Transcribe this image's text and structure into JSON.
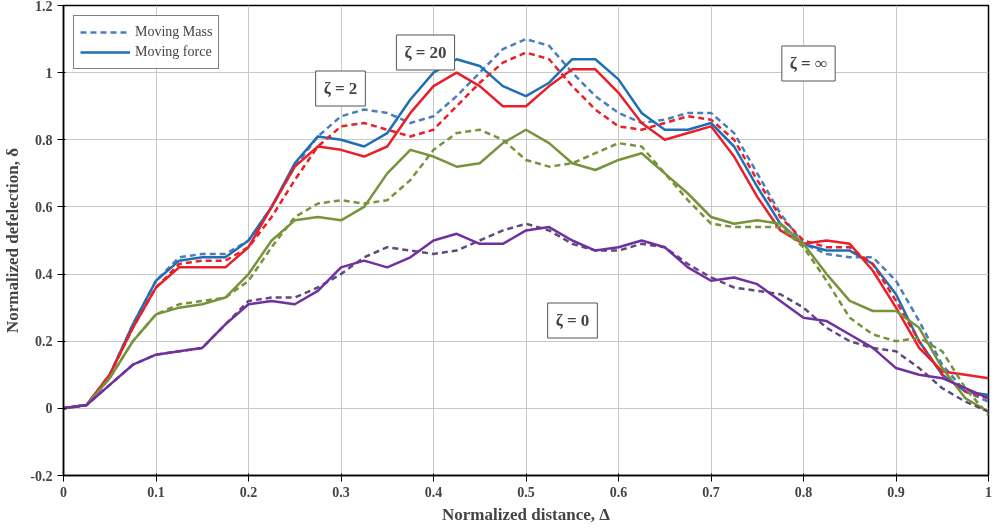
{
  "chart_data": {
    "type": "line",
    "xlabel": "Normalized distance, Δ",
    "ylabel": "Normalized defelection, δ",
    "x": [
      0,
      0.025,
      0.05,
      0.075,
      0.1,
      0.125,
      0.15,
      0.175,
      0.2,
      0.225,
      0.25,
      0.275,
      0.3,
      0.325,
      0.35,
      0.375,
      0.4,
      0.425,
      0.45,
      0.475,
      0.5,
      0.525,
      0.55,
      0.575,
      0.6,
      0.625,
      0.65,
      0.675,
      0.7,
      0.725,
      0.75,
      0.775,
      0.8,
      0.825,
      0.85,
      0.875,
      0.9,
      0.925,
      0.95,
      0.975,
      1.0
    ],
    "series": [
      {
        "name": "Moving Mass",
        "color": "#4a7ebb",
        "line_style": "dashed",
        "values": [
          0,
          0.01,
          0.1,
          0.25,
          0.38,
          0.45,
          0.46,
          0.46,
          0.5,
          0.6,
          0.72,
          0.81,
          0.87,
          0.89,
          0.88,
          0.85,
          0.87,
          0.93,
          1.0,
          1.07,
          1.1,
          1.08,
          1.0,
          0.93,
          0.88,
          0.85,
          0.86,
          0.88,
          0.88,
          0.82,
          0.7,
          0.58,
          0.49,
          0.46,
          0.45,
          0.45,
          0.38,
          0.26,
          0.13,
          0.05,
          0.02
        ]
      },
      {
        "name": "Moving force",
        "color": "#1f6fb5",
        "line_style": "solid",
        "values": [
          0,
          0.01,
          0.1,
          0.25,
          0.38,
          0.44,
          0.45,
          0.45,
          0.5,
          0.6,
          0.73,
          0.81,
          0.8,
          0.78,
          0.82,
          0.92,
          1.0,
          1.04,
          1.02,
          0.96,
          0.93,
          0.97,
          1.04,
          1.04,
          0.98,
          0.88,
          0.83,
          0.83,
          0.85,
          0.78,
          0.66,
          0.55,
          0.49,
          0.47,
          0.47,
          0.43,
          0.34,
          0.2,
          0.1,
          0.05,
          0.04
        ]
      },
      {
        "color": "#e8202a",
        "line_style": "dashed",
        "values": [
          0,
          0.01,
          0.1,
          0.24,
          0.36,
          0.43,
          0.44,
          0.44,
          0.48,
          0.57,
          0.68,
          0.78,
          0.84,
          0.85,
          0.83,
          0.81,
          0.83,
          0.9,
          0.97,
          1.03,
          1.06,
          1.04,
          0.96,
          0.89,
          0.84,
          0.83,
          0.85,
          0.87,
          0.86,
          0.8,
          0.68,
          0.57,
          0.5,
          0.48,
          0.48,
          0.43,
          0.32,
          0.2,
          0.1,
          0.05,
          0.03
        ]
      },
      {
        "color": "#e8202a",
        "line_style": "solid",
        "values": [
          0,
          0.01,
          0.1,
          0.24,
          0.36,
          0.42,
          0.42,
          0.42,
          0.48,
          0.6,
          0.72,
          0.78,
          0.77,
          0.75,
          0.78,
          0.88,
          0.96,
          1.0,
          0.96,
          0.9,
          0.9,
          0.96,
          1.01,
          1.01,
          0.94,
          0.85,
          0.8,
          0.82,
          0.84,
          0.75,
          0.63,
          0.53,
          0.49,
          0.5,
          0.49,
          0.41,
          0.3,
          0.18,
          0.11,
          0.1,
          0.09
        ]
      },
      {
        "color": "#77933c",
        "line_style": "dashed",
        "values": [
          0,
          0.01,
          0.09,
          0.2,
          0.28,
          0.31,
          0.32,
          0.33,
          0.38,
          0.48,
          0.57,
          0.61,
          0.62,
          0.61,
          0.62,
          0.68,
          0.77,
          0.82,
          0.83,
          0.8,
          0.74,
          0.72,
          0.73,
          0.76,
          0.79,
          0.78,
          0.7,
          0.62,
          0.55,
          0.54,
          0.54,
          0.54,
          0.48,
          0.38,
          0.27,
          0.22,
          0.2,
          0.21,
          0.17,
          0.06,
          -0.02
        ]
      },
      {
        "color": "#77933c",
        "line_style": "solid",
        "values": [
          0,
          0.01,
          0.09,
          0.2,
          0.28,
          0.3,
          0.31,
          0.33,
          0.4,
          0.5,
          0.56,
          0.57,
          0.56,
          0.6,
          0.7,
          0.77,
          0.75,
          0.72,
          0.73,
          0.79,
          0.83,
          0.79,
          0.73,
          0.71,
          0.74,
          0.76,
          0.7,
          0.64,
          0.57,
          0.55,
          0.56,
          0.55,
          0.49,
          0.4,
          0.32,
          0.29,
          0.29,
          0.24,
          0.12,
          0.03,
          -0.01
        ]
      },
      {
        "color": "#604a7b",
        "line_style": "dashed",
        "values": [
          0,
          0.01,
          0.07,
          0.13,
          0.16,
          0.17,
          0.18,
          0.25,
          0.32,
          0.33,
          0.33,
          0.36,
          0.4,
          0.45,
          0.48,
          0.47,
          0.46,
          0.47,
          0.5,
          0.53,
          0.55,
          0.53,
          0.49,
          0.47,
          0.47,
          0.49,
          0.48,
          0.43,
          0.39,
          0.36,
          0.35,
          0.34,
          0.3,
          0.24,
          0.2,
          0.18,
          0.17,
          0.12,
          0.06,
          0.02,
          -0.01
        ]
      },
      {
        "color": "#7030a0",
        "line_style": "solid",
        "values": [
          0,
          0.01,
          0.07,
          0.13,
          0.16,
          0.17,
          0.18,
          0.25,
          0.31,
          0.32,
          0.31,
          0.35,
          0.42,
          0.44,
          0.42,
          0.45,
          0.5,
          0.52,
          0.49,
          0.49,
          0.53,
          0.54,
          0.5,
          0.47,
          0.48,
          0.5,
          0.48,
          0.42,
          0.38,
          0.39,
          0.37,
          0.32,
          0.27,
          0.26,
          0.22,
          0.18,
          0.12,
          0.1,
          0.09,
          0.06,
          0.03
        ]
      }
    ],
    "annotations": [
      "ζ = 20",
      "ζ = 2",
      "ζ = ∞",
      "ζ = 0"
    ],
    "xlim": [
      0,
      1
    ],
    "ylim": [
      -0.2,
      1.2
    ],
    "xticks": [
      0,
      0.1,
      0.2,
      0.3,
      0.4,
      0.5,
      0.6,
      0.7,
      0.8,
      0.9,
      1
    ],
    "yticks": [
      -0.2,
      0,
      0.2,
      0.4,
      0.6,
      0.8,
      1,
      1.2
    ],
    "grid": true,
    "legend": "top left"
  }
}
